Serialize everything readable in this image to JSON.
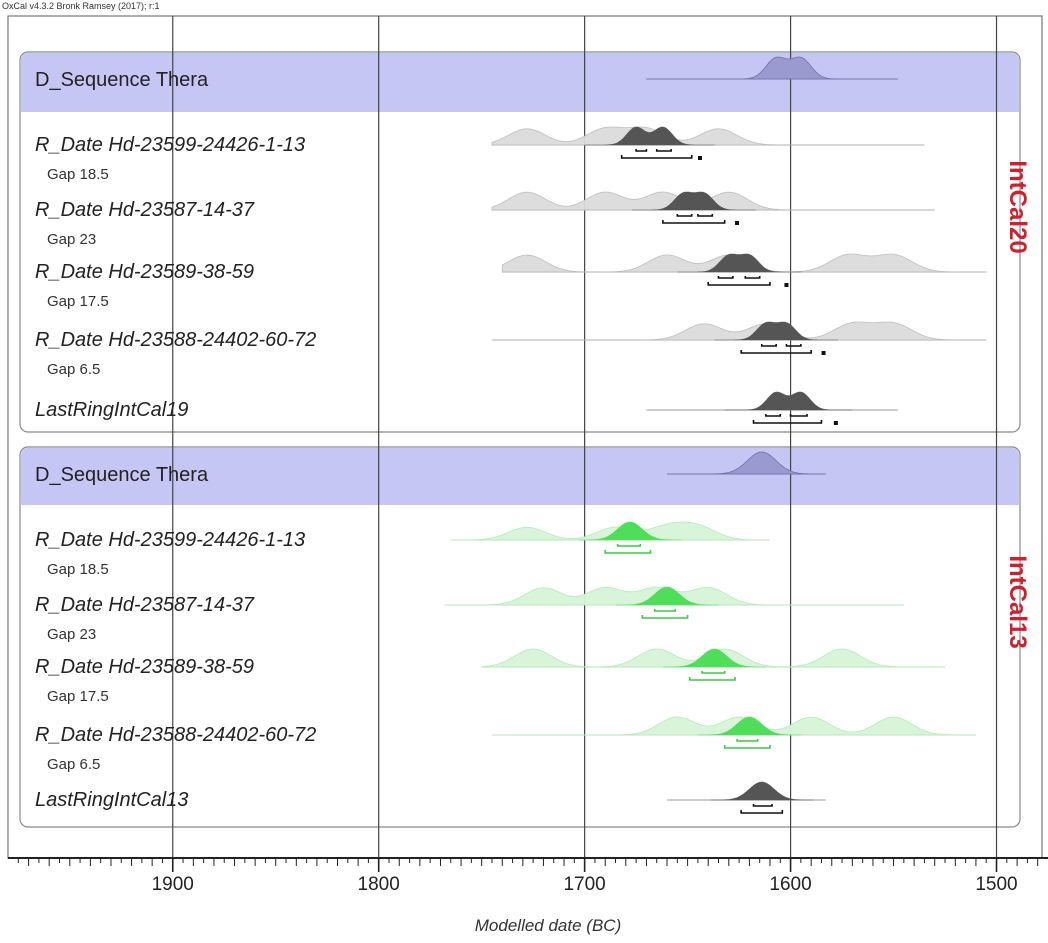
{
  "header": {
    "software": "OxCal v4.3.2 Bronk Ramsey (2017); r:1"
  },
  "chart_data": {
    "type": "area",
    "xlabel": "Modelled date (BC)",
    "x_reversed": true,
    "xlim": [
      1980,
      1475
    ],
    "x_ticks": [
      1900,
      1800,
      1700,
      1600,
      1500
    ],
    "x_tick_labels": [
      "1900",
      "1800",
      "1700",
      "1600",
      "1500"
    ],
    "grid": true,
    "panels": [
      {
        "label": "IntCal20",
        "label_color": "#d0202e",
        "model_color": "#555555",
        "sequence": {
          "name": "D_Sequence Thera",
          "range": [
            1670,
            1548
          ],
          "peaks": [
            1607,
            1595
          ]
        },
        "items": [
          {
            "name": "R_Date Hd-23599-24426-1-13",
            "range": [
              1745,
              1535
            ],
            "prior_peaks": [
              1728,
              1690,
              1670,
              1635
            ],
            "posterior_peaks": [
              1675,
              1662
            ],
            "brackets": [
              [
                1675,
                1670
              ],
              [
                1665,
                1658
              ]
            ],
            "bracket_95": [
              1682,
              1648
            ],
            "dot": 1644,
            "gap": "Gap 18.5"
          },
          {
            "name": "R_Date Hd-23587-14-37",
            "range": [
              1745,
              1530
            ],
            "prior_peaks": [
              1728,
              1690,
              1662,
              1630
            ],
            "posterior_peaks": [
              1652,
              1642
            ],
            "brackets": [
              [
                1655,
                1648
              ],
              [
                1645,
                1638
              ]
            ],
            "bracket_95": [
              1662,
              1632
            ],
            "dot": 1626,
            "gap": "Gap 23"
          },
          {
            "name": "R_Date Hd-23589-38-59",
            "range": [
              1740,
              1505
            ],
            "prior_peaks": [
              1728,
              1660,
              1630,
              1572,
              1550
            ],
            "posterior_peaks": [
              1630,
              1620
            ],
            "brackets": [
              [
                1635,
                1628
              ],
              [
                1622,
                1615
              ]
            ],
            "bracket_95": [
              1640,
              1610
            ],
            "dot": 1602,
            "gap": "Gap 17.5"
          },
          {
            "name": "R_Date Hd-23588-24402-60-72",
            "range": [
              1745,
              1505
            ],
            "prior_peaks": [
              1642,
              1612,
              1570,
              1550
            ],
            "posterior_peaks": [
              1612,
              1602
            ],
            "brackets": [
              [
                1614,
                1607
              ],
              [
                1602,
                1595
              ]
            ],
            "bracket_95": [
              1624,
              1590
            ],
            "dot": 1584,
            "gap": "Gap 6.5"
          },
          {
            "name": "LastRingIntCal19",
            "range": [
              1670,
              1548
            ],
            "prior_peaks": [
              1607,
              1595
            ],
            "posterior_peaks": [
              1607,
              1595
            ],
            "brackets": [
              [
                1612,
                1605
              ],
              [
                1600,
                1592
              ]
            ],
            "bracket_95": [
              1618,
              1585
            ],
            "dot": 1578,
            "gap": ""
          }
        ]
      },
      {
        "label": "IntCal13",
        "label_color": "#d0202e",
        "model_color": "#2ecc40",
        "sequence": {
          "name": "D_Sequence Thera",
          "range": [
            1660,
            1583
          ],
          "peaks": [
            1614
          ]
        },
        "items": [
          {
            "name": "R_Date Hd-23599-24426-1-13",
            "range": [
              1765,
              1610
            ],
            "prior_peaks": [
              1728,
              1685,
              1660,
              1645
            ],
            "posterior_peaks": [
              1678
            ],
            "brackets": [
              [
                1684,
                1673
              ]
            ],
            "bracket_95": [
              1690,
              1668
            ],
            "dot": null,
            "gap": "Gap 18.5"
          },
          {
            "name": "R_Date Hd-23587-14-37",
            "range": [
              1768,
              1545
            ],
            "prior_peaks": [
              1720,
              1690,
              1665,
              1640
            ],
            "posterior_peaks": [
              1660
            ],
            "brackets": [
              [
                1666,
                1656
              ]
            ],
            "bracket_95": [
              1672,
              1650
            ],
            "dot": null,
            "gap": "Gap 23"
          },
          {
            "name": "R_Date Hd-23589-38-59",
            "range": [
              1750,
              1525
            ],
            "prior_peaks": [
              1725,
              1665,
              1632,
              1575
            ],
            "posterior_peaks": [
              1637
            ],
            "brackets": [
              [
                1643,
                1632
              ]
            ],
            "bracket_95": [
              1649,
              1627
            ],
            "dot": null,
            "gap": "Gap 17.5"
          },
          {
            "name": "R_Date Hd-23588-24402-60-72",
            "range": [
              1745,
              1510
            ],
            "prior_peaks": [
              1655,
              1625,
              1590,
              1550
            ],
            "posterior_peaks": [
              1620
            ],
            "brackets": [
              [
                1626,
                1616
              ]
            ],
            "bracket_95": [
              1632,
              1610
            ],
            "dot": null,
            "gap": "Gap 6.5"
          },
          {
            "name": "LastRingIntCal13",
            "range": [
              1660,
              1583
            ],
            "prior_peaks": [
              1614
            ],
            "posterior_peaks": [
              1614
            ],
            "brackets": [
              [
                1618,
                1609
              ]
            ],
            "bracket_95": [
              1624,
              1604
            ],
            "dot": null,
            "gap": ""
          }
        ]
      }
    ]
  }
}
